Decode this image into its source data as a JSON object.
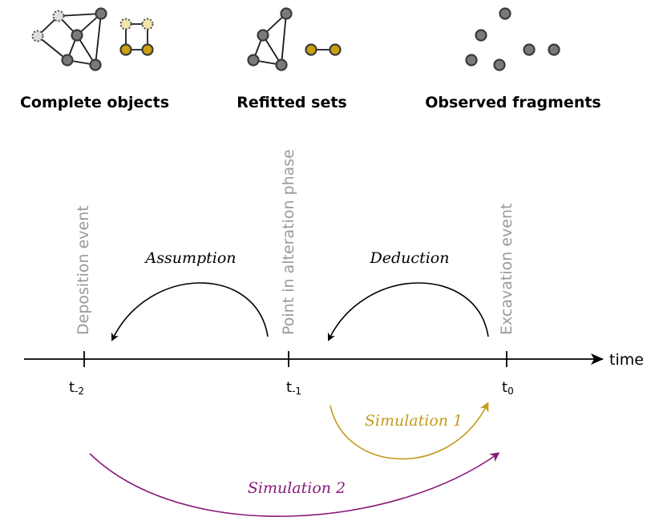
{
  "top_labels": {
    "complete": "Complete objects",
    "refitted": "Refitted sets",
    "observed": "Observed fragments"
  },
  "timeline": {
    "axis_label": "time",
    "ticks": [
      {
        "label": "t",
        "sub": "-2",
        "event": "Deposition event"
      },
      {
        "label": "t",
        "sub": "-1",
        "event": "Point in alteration phase"
      },
      {
        "label": "t",
        "sub": "0",
        "event": "Excavation event"
      }
    ]
  },
  "arcs": {
    "assumption": "Assumption",
    "deduction": "Deduction",
    "simulation1": "Simulation 1",
    "simulation2": "Simulation 2"
  },
  "colors": {
    "node_grey": "#7a7a7a",
    "node_gold": "#c9a00f",
    "event_label": "#9a9a9a",
    "simulation1": "#c39a1c",
    "simulation2": "#8a1a7a"
  }
}
